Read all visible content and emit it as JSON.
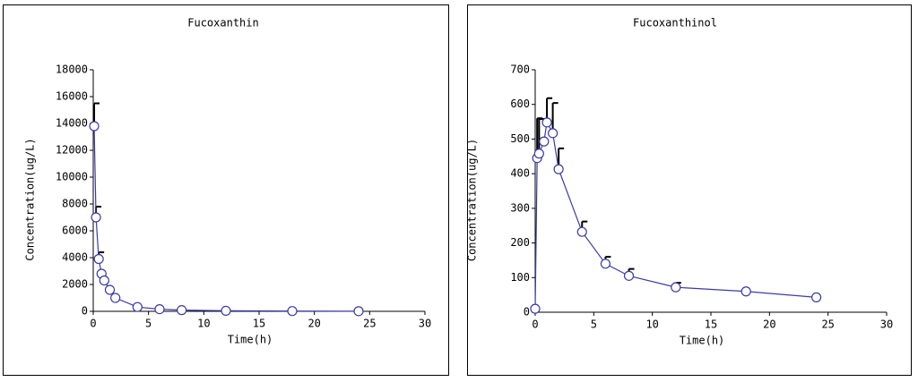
{
  "chart_data": [
    {
      "type": "line",
      "title": "Fucoxanthin",
      "x_label": "Time(h)",
      "y_label": "Concentration(ug/L)",
      "x": [
        0.083,
        0.25,
        0.5,
        0.75,
        1,
        1.5,
        2,
        4,
        6,
        8,
        12,
        18,
        24
      ],
      "series": [
        {
          "name": "Fucoxanthin",
          "color": "#3a3aa8",
          "values": [
            13800,
            7000,
            3900,
            2800,
            2300,
            1600,
            1000,
            320,
            160,
            90,
            40,
            20,
            10
          ],
          "errors": [
            1700,
            800,
            500,
            null,
            null,
            null,
            null,
            null,
            null,
            null,
            null,
            null,
            null
          ]
        }
      ],
      "xlim": [
        0,
        30
      ],
      "xticks": [
        0,
        5,
        10,
        15,
        20,
        25,
        30
      ],
      "ylim": [
        0,
        18000
      ],
      "yticks": [
        0,
        2000,
        4000,
        6000,
        8000,
        10000,
        12000,
        14000,
        16000,
        18000
      ]
    },
    {
      "type": "line",
      "title": "Fucoxanthinol",
      "x_label": "Time(h)",
      "y_label": "Concentration(ug/L)",
      "x": [
        0,
        0.167,
        0.333,
        0.75,
        1,
        1.5,
        2,
        4,
        6,
        8,
        12,
        18,
        24
      ],
      "series": [
        {
          "name": "Fucoxanthinol",
          "color": "#3a3aa8",
          "values": [
            10,
            445,
            458,
            493,
            548,
            517,
            413,
            232,
            140,
            105,
            72,
            60,
            43
          ],
          "errors": [
            null,
            115,
            100,
            null,
            70,
            87,
            60,
            30,
            20,
            20,
            13,
            null,
            null
          ]
        }
      ],
      "xlim": [
        0,
        30
      ],
      "xticks": [
        0,
        5,
        10,
        15,
        20,
        25,
        30
      ],
      "ylim": [
        0,
        700
      ],
      "yticks": [
        0,
        100,
        200,
        300,
        400,
        500,
        600,
        700
      ]
    }
  ]
}
